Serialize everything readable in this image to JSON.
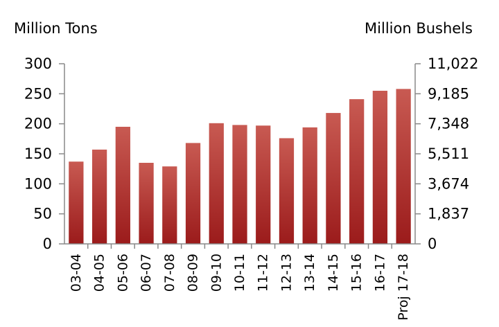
{
  "chart_data": {
    "type": "bar",
    "ylabel_left": "Million Tons",
    "ylabel_right": "Million Bushels",
    "categories": [
      "03-04",
      "04-05",
      "05-06",
      "06-07",
      "07-08",
      "08-09",
      "09-10",
      "10-11",
      "11-12",
      "12-13",
      "13-14",
      "14-15",
      "15-16",
      "16-17",
      "Proj 17-18"
    ],
    "values": [
      137,
      157,
      195,
      135,
      129,
      168,
      201,
      198,
      197,
      176,
      194,
      218,
      241,
      255,
      258
    ],
    "ylim": [
      0,
      300
    ],
    "yticks_left": [
      "0",
      "50",
      "100",
      "150",
      "200",
      "250",
      "300"
    ],
    "yticks_right": [
      "0",
      "1,837",
      "3,674",
      "5,511",
      "7,348",
      "9,185",
      "11,022"
    ],
    "grid": false,
    "colors": {
      "bar_dark": "#9b1b1b",
      "bar_mid": "#b23a36",
      "bar_light": "#c85a52"
    }
  }
}
